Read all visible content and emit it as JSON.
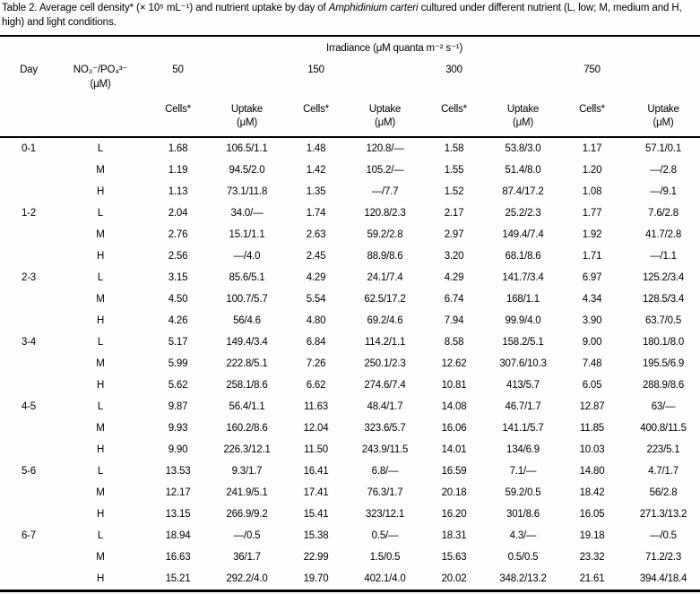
{
  "caption": {
    "before": "Table 2. Average cell density* (× 10⁵ mL⁻¹) and nutrient uptake by day of ",
    "species": "Amphidinium carteri",
    "after": " cultured under different nutrient (L, low; M, medium and H, high) and light conditions."
  },
  "table": {
    "irradiance_label": "Irradiance (μM quanta m⁻² s⁻¹)",
    "columns": {
      "day": "Day",
      "nutrient": "NO₃⁻/PO₄³⁻",
      "nutrient_unit": "(μM)",
      "cells": "Cells*",
      "uptake": "Uptake",
      "uptake_unit": "(μM)"
    },
    "irradiance_levels": [
      "50",
      "150",
      "300",
      "750"
    ],
    "rows": [
      {
        "day": "0-1",
        "nutrient": "L",
        "values": [
          "1.68",
          "106.5/1.1",
          "1.48",
          "120.8/—",
          "1.58",
          "53.8/3.0",
          "1.17",
          "57.1/0.1"
        ]
      },
      {
        "day": "",
        "nutrient": "M",
        "values": [
          "1.19",
          "94.5/2.0",
          "1.42",
          "105.2/—",
          "1.55",
          "51.4/8.0",
          "1.20",
          "—/2.8"
        ]
      },
      {
        "day": "",
        "nutrient": "H",
        "values": [
          "1.13",
          "73.1/11.8",
          "1.35",
          "—/7.7",
          "1.52",
          "87.4/17.2",
          "1.08",
          "—/9.1"
        ]
      },
      {
        "day": "1-2",
        "nutrient": "L",
        "values": [
          "2.04",
          "34.0/—",
          "1.74",
          "120.8/2.3",
          "2.17",
          "25.2/2.3",
          "1.77",
          "7.6/2.8"
        ]
      },
      {
        "day": "",
        "nutrient": "M",
        "values": [
          "2.76",
          "15.1/1.1",
          "2.63",
          "59.2/2.8",
          "2.97",
          "149.4/7.4",
          "1.92",
          "41.7/2.8"
        ]
      },
      {
        "day": "",
        "nutrient": "H",
        "values": [
          "2.56",
          "—/4.0",
          "2.45",
          "88.9/8.6",
          "3.20",
          "68.1/8.6",
          "1.71",
          "—/1.1"
        ]
      },
      {
        "day": "2-3",
        "nutrient": "L",
        "values": [
          "3.15",
          "85.6/5.1",
          "4.29",
          "24.1/7.4",
          "4.29",
          "141.7/3.4",
          "6.97",
          "125.2/3.4"
        ]
      },
      {
        "day": "",
        "nutrient": "M",
        "values": [
          "4.50",
          "100.7/5.7",
          "5.54",
          "62.5/17.2",
          "6.74",
          "168/1.1",
          "4.34",
          "128.5/3.4"
        ]
      },
      {
        "day": "",
        "nutrient": "H",
        "values": [
          "4.26",
          "56/4.6",
          "4.80",
          "69.2/4.6",
          "7.94",
          "99.9/4.0",
          "3.90",
          "63.7/0.5"
        ]
      },
      {
        "day": "3-4",
        "nutrient": "L",
        "values": [
          "5.17",
          "149.4/3.4",
          "6.84",
          "114.2/1.1",
          "8.58",
          "158.2/5.1",
          "9.00",
          "180.1/8.0"
        ]
      },
      {
        "day": "",
        "nutrient": "M",
        "values": [
          "5.99",
          "222.8/5.1",
          "7.26",
          "250.1/2.3",
          "12.62",
          "307.6/10.3",
          "7.48",
          "195.5/6.9"
        ]
      },
      {
        "day": "",
        "nutrient": "H",
        "values": [
          "5.62",
          "258.1/8.6",
          "6.62",
          "274.6/7.4",
          "10.81",
          "413/5.7",
          "6.05",
          "288.9/8.6"
        ]
      },
      {
        "day": "4-5",
        "nutrient": "L",
        "values": [
          "9.87",
          "56.4/1.1",
          "11.63",
          "48.4/1.7",
          "14.08",
          "46.7/1.7",
          "12.87",
          "63/—"
        ]
      },
      {
        "day": "",
        "nutrient": "M",
        "values": [
          "9.93",
          "160.2/8.6",
          "12.04",
          "323.6/5.7",
          "16.06",
          "141.1/5.7",
          "11.85",
          "400.8/11.5"
        ]
      },
      {
        "day": "",
        "nutrient": "H",
        "values": [
          "9.90",
          "226.3/12.1",
          "11.50",
          "243.9/11.5",
          "14.01",
          "134/6.9",
          "10.03",
          "223/5.1"
        ]
      },
      {
        "day": "5-6",
        "nutrient": "L",
        "values": [
          "13.53",
          "9.3/1.7",
          "16.41",
          "6.8/—",
          "16.59",
          "7.1/—",
          "14.80",
          "4.7/1.7"
        ]
      },
      {
        "day": "",
        "nutrient": "M",
        "values": [
          "12.17",
          "241.9/5.1",
          "17.41",
          "76.3/1.7",
          "20.18",
          "59.2/0.5",
          "18.42",
          "56/2.8"
        ]
      },
      {
        "day": "",
        "nutrient": "H",
        "values": [
          "13.15",
          "266.9/9.2",
          "15.41",
          "323/12.1",
          "16.20",
          "301/8.6",
          "16.05",
          "271.3/13.2"
        ]
      },
      {
        "day": "6-7",
        "nutrient": "L",
        "values": [
          "18.94",
          "—/0.5",
          "15.38",
          "0.5/—",
          "18.31",
          "4.3/—",
          "19.18",
          "—/0.5"
        ]
      },
      {
        "day": "",
        "nutrient": "M",
        "values": [
          "16.63",
          "36/1.7",
          "22.99",
          "1.5/0.5",
          "15.63",
          "0.5/0.5",
          "23.32",
          "71.2/2.3"
        ]
      },
      {
        "day": "",
        "nutrient": "H",
        "values": [
          "15.21",
          "292.2/4.0",
          "19.70",
          "402.1/4.0",
          "20.02",
          "348.2/13.2",
          "21.61",
          "394.4/18.4"
        ]
      }
    ]
  },
  "colors": {
    "text": "#000000",
    "rule": "#000000",
    "background": "#fdfdfc"
  }
}
